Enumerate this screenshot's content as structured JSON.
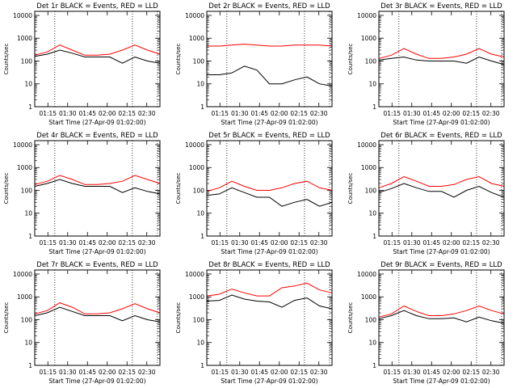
{
  "chart_data": {
    "type": "line",
    "panels": [
      {
        "title": "Det 1r BLACK = Events, RED = LLD",
        "xlabel": "Start Time (27-Apr-09 01:02:00)",
        "ylabel": "Counts/sec",
        "yscale": "log",
        "ylim": [
          1,
          15000
        ],
        "x_ticks": [
          "01:15",
          "01:30",
          "01:45",
          "02:00",
          "02:15",
          "02:30"
        ],
        "y_ticks": [
          "1",
          "10",
          "100",
          "1000",
          "10000"
        ],
        "series": [
          {
            "color": "#000000",
            "x": [
              0,
              1,
              2,
              3,
              4,
              5,
              6,
              7,
              8,
              9,
              10
            ],
            "y": [
              160,
              200,
              300,
              220,
              150,
              150,
              150,
              80,
              150,
              100,
              80
            ]
          },
          {
            "color": "#ff0000",
            "x": [
              0,
              1,
              2,
              3,
              4,
              5,
              6,
              7,
              8,
              9,
              10
            ],
            "y": [
              180,
              250,
              500,
              300,
              180,
              180,
              200,
              300,
              500,
              300,
              200
            ]
          }
        ]
      },
      {
        "title": "Det 2r BLACK = Events, RED = LLD",
        "xlabel": "Start Time (27-Apr-09 01:02:00)",
        "ylabel": "Counts/sec",
        "yscale": "log",
        "ylim": [
          1,
          15000
        ],
        "x_ticks": [
          "01:15",
          "01:30",
          "01:45",
          "02:00",
          "02:15",
          "02:30"
        ],
        "y_ticks": [
          "1",
          "10",
          "100",
          "1000",
          "10000"
        ],
        "series": [
          {
            "color": "#000000",
            "x": [
              0,
              1,
              2,
              3,
              4,
              5,
              6,
              7,
              8,
              9,
              10
            ],
            "y": [
              25,
              25,
              30,
              60,
              40,
              10,
              10,
              15,
              20,
              10,
              8
            ]
          },
          {
            "color": "#ff0000",
            "x": [
              0,
              1,
              2,
              3,
              4,
              5,
              6,
              7,
              8,
              9,
              10
            ],
            "y": [
              450,
              450,
              500,
              550,
              500,
              450,
              450,
              500,
              500,
              500,
              450
            ]
          }
        ]
      },
      {
        "title": "Det 3r BLACK = Events, RED = LLD",
        "xlabel": "Start Time (27-Apr-09 01:02:00)",
        "ylabel": "Counts/sec",
        "yscale": "log",
        "ylim": [
          1,
          15000
        ],
        "x_ticks": [
          "01:15",
          "01:30",
          "01:45",
          "02:00",
          "02:15",
          "02:30"
        ],
        "y_ticks": [
          "1",
          "10",
          "100",
          "1000",
          "10000"
        ],
        "series": [
          {
            "color": "#000000",
            "x": [
              0,
              1,
              2,
              3,
              4,
              5,
              6,
              7,
              8,
              9,
              10
            ],
            "y": [
              110,
              130,
              150,
              110,
              100,
              100,
              100,
              80,
              150,
              100,
              70
            ]
          },
          {
            "color": "#ff0000",
            "x": [
              0,
              1,
              2,
              3,
              4,
              5,
              6,
              7,
              8,
              9,
              10
            ],
            "y": [
              130,
              180,
              350,
              200,
              130,
              130,
              150,
              200,
              350,
              200,
              150
            ]
          }
        ]
      },
      {
        "title": "Det 4r BLACK = Events, RED = LLD",
        "xlabel": "Start Time (27-Apr-09 01:02:00)",
        "ylabel": "Counts/sec",
        "yscale": "log",
        "ylim": [
          1,
          15000
        ],
        "x_ticks": [
          "01:15",
          "01:30",
          "01:45",
          "02:00",
          "02:15",
          "02:30"
        ],
        "y_ticks": [
          "1",
          "10",
          "100",
          "1000",
          "10000"
        ],
        "series": [
          {
            "color": "#000000",
            "x": [
              0,
              1,
              2,
              3,
              4,
              5,
              6,
              7,
              8,
              9,
              10
            ],
            "y": [
              150,
              200,
              300,
              200,
              150,
              150,
              150,
              80,
              130,
              90,
              70
            ]
          },
          {
            "color": "#ff0000",
            "x": [
              0,
              1,
              2,
              3,
              4,
              5,
              6,
              7,
              8,
              9,
              10
            ],
            "y": [
              180,
              250,
              450,
              300,
              180,
              180,
              200,
              250,
              450,
              300,
              200
            ]
          }
        ]
      },
      {
        "title": "Det 5r BLACK = Events, RED = LLD",
        "xlabel": "Start Time (27-Apr-09 01:02:00)",
        "ylabel": "Counts/sec",
        "yscale": "log",
        "ylim": [
          1,
          15000
        ],
        "x_ticks": [
          "01:15",
          "01:30",
          "01:45",
          "02:00",
          "02:15",
          "02:30"
        ],
        "y_ticks": [
          "1",
          "10",
          "100",
          "1000",
          "10000"
        ],
        "series": [
          {
            "color": "#000000",
            "x": [
              0,
              1,
              2,
              3,
              4,
              5,
              6,
              7,
              8,
              9,
              10
            ],
            "y": [
              60,
              70,
              130,
              80,
              50,
              50,
              20,
              30,
              40,
              20,
              30
            ]
          },
          {
            "color": "#ff0000",
            "x": [
              0,
              1,
              2,
              3,
              4,
              5,
              6,
              7,
              8,
              9,
              10
            ],
            "y": [
              90,
              130,
              250,
              150,
              100,
              100,
              130,
              200,
              250,
              130,
              100
            ]
          }
        ]
      },
      {
        "title": "Det 6r BLACK = Events, RED = LLD",
        "xlabel": "Start Time (27-Apr-09 01:02:00)",
        "ylabel": "Counts/sec",
        "yscale": "log",
        "ylim": [
          1,
          15000
        ],
        "x_ticks": [
          "01:15",
          "01:30",
          "01:45",
          "02:00",
          "02:15",
          "02:30"
        ],
        "y_ticks": [
          "1",
          "10",
          "100",
          "1000",
          "10000"
        ],
        "series": [
          {
            "color": "#000000",
            "x": [
              0,
              1,
              2,
              3,
              4,
              5,
              6,
              7,
              8,
              9,
              10
            ],
            "y": [
              80,
              120,
              200,
              130,
              90,
              90,
              50,
              100,
              150,
              80,
              50
            ]
          },
          {
            "color": "#ff0000",
            "x": [
              0,
              1,
              2,
              3,
              4,
              5,
              6,
              7,
              8,
              9,
              10
            ],
            "y": [
              130,
              200,
              400,
              250,
              150,
              150,
              180,
              300,
              400,
              200,
              150
            ]
          }
        ]
      },
      {
        "title": "Det 7r BLACK = Events, RED = LLD",
        "xlabel": "Start Time (27-Apr-09 01:02:00)",
        "ylabel": "Counts/sec",
        "yscale": "log",
        "ylim": [
          1,
          15000
        ],
        "x_ticks": [
          "01:15",
          "01:30",
          "01:45",
          "02:00",
          "02:15",
          "02:30"
        ],
        "y_ticks": [
          "1",
          "10",
          "100",
          "1000",
          "10000"
        ],
        "series": [
          {
            "color": "#000000",
            "x": [
              0,
              1,
              2,
              3,
              4,
              5,
              6,
              7,
              8,
              9,
              10
            ],
            "y": [
              150,
              200,
              350,
              230,
              150,
              150,
              150,
              90,
              150,
              100,
              80
            ]
          },
          {
            "color": "#ff0000",
            "x": [
              0,
              1,
              2,
              3,
              4,
              5,
              6,
              7,
              8,
              9,
              10
            ],
            "y": [
              180,
              250,
              550,
              350,
              180,
              180,
              200,
              300,
              500,
              300,
              200
            ]
          }
        ]
      },
      {
        "title": "Det 8r BLACK = Events, RED = LLD",
        "xlabel": "Start Time (27-Apr-09 01:02:00)",
        "ylabel": "Counts/sec",
        "yscale": "log",
        "ylim": [
          1,
          15000
        ],
        "x_ticks": [
          "01:15",
          "01:30",
          "01:45",
          "02:00",
          "02:15",
          "02:30"
        ],
        "y_ticks": [
          "1",
          "10",
          "100",
          "1000",
          "10000"
        ],
        "series": [
          {
            "color": "#000000",
            "x": [
              0,
              1,
              2,
              3,
              4,
              5,
              6,
              7,
              8,
              9,
              10
            ],
            "y": [
              650,
              700,
              1200,
              800,
              650,
              600,
              350,
              700,
              900,
              400,
              300
            ]
          },
          {
            "color": "#ff0000",
            "x": [
              0,
              1,
              2,
              3,
              4,
              5,
              6,
              7,
              8,
              9,
              10
            ],
            "y": [
              1100,
              1300,
              2200,
              1500,
              1100,
              1100,
              2500,
              3000,
              4000,
              2000,
              1500
            ]
          }
        ]
      },
      {
        "title": "Det 9r BLACK = Events, RED = LLD",
        "xlabel": "Start Time (27-Apr-09 01:02:00)",
        "ylabel": "Counts/sec",
        "yscale": "log",
        "ylim": [
          1,
          15000
        ],
        "x_ticks": [
          "01:15",
          "01:30",
          "01:45",
          "02:00",
          "02:15",
          "02:30"
        ],
        "y_ticks": [
          "1",
          "10",
          "100",
          "1000",
          "10000"
        ],
        "series": [
          {
            "color": "#000000",
            "x": [
              0,
              1,
              2,
              3,
              4,
              5,
              6,
              7,
              8,
              9,
              10
            ],
            "y": [
              110,
              150,
              250,
              150,
              110,
              110,
              120,
              80,
              130,
              90,
              70
            ]
          },
          {
            "color": "#ff0000",
            "x": [
              0,
              1,
              2,
              3,
              4,
              5,
              6,
              7,
              8,
              9,
              10
            ],
            "y": [
              130,
              180,
              400,
              230,
              150,
              150,
              180,
              250,
              400,
              250,
              180
            ]
          }
        ]
      }
    ]
  }
}
